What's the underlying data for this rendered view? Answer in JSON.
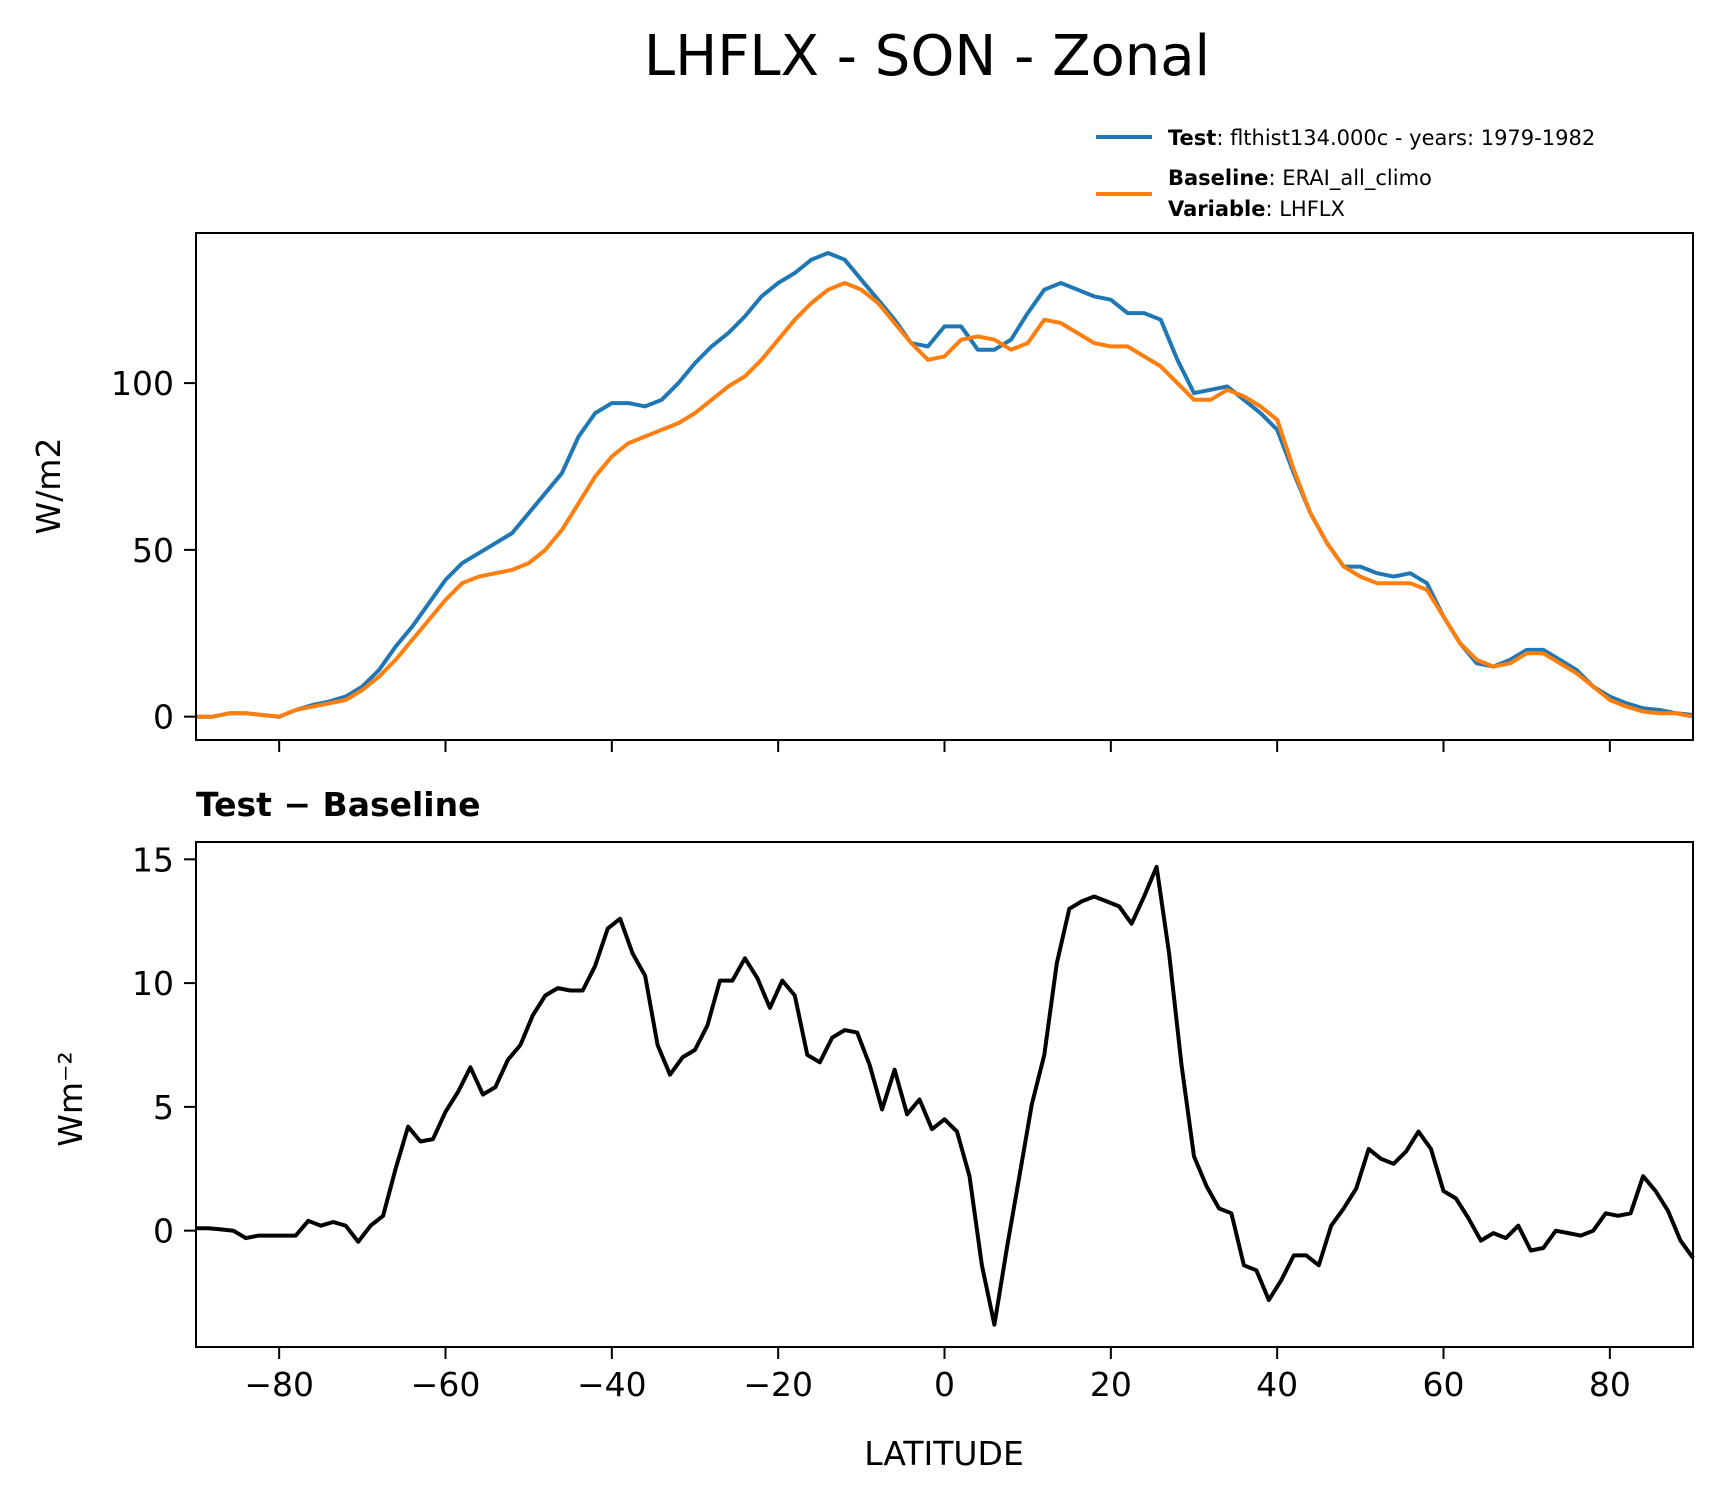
{
  "title": "LHFLX - SON - Zonal",
  "legend": {
    "test_key": "Test",
    "test_value": ": flthist134.000c - years: 1979-1982",
    "baseline_key": "Baseline",
    "baseline_value": ": ERAI_all_climo",
    "variable_key": "Variable",
    "variable_value": ": LHFLX"
  },
  "colors": {
    "test": "#1f77b4",
    "baseline": "#ff7f0e",
    "difference": "#000000"
  },
  "chart_data": [
    {
      "type": "line",
      "title": "",
      "xlabel": "",
      "ylabel": "W/m2",
      "xlim": [
        -90,
        90
      ],
      "ylim": [
        -7,
        145
      ],
      "xticks": [
        -80,
        -60,
        -40,
        -20,
        0,
        20,
        40,
        60,
        80
      ],
      "yticks": [
        0,
        50,
        100
      ],
      "ytick_labels": [
        "0",
        "50",
        "100"
      ],
      "grid": false,
      "legend_position": "above-right",
      "series": [
        {
          "name": "Test",
          "x": [
            -90,
            -88,
            -86,
            -84,
            -82,
            -80,
            -78,
            -76,
            -74,
            -72,
            -70,
            -68,
            -66,
            -64,
            -62,
            -60,
            -58,
            -56,
            -54,
            -52,
            -50,
            -48,
            -46,
            -44,
            -42,
            -40,
            -38,
            -36,
            -34,
            -32,
            -30,
            -28,
            -26,
            -24,
            -22,
            -20,
            -18,
            -16,
            -14,
            -12,
            -10,
            -8,
            -6,
            -4,
            -2,
            0,
            2,
            4,
            6,
            8,
            10,
            12,
            14,
            16,
            18,
            20,
            22,
            24,
            26,
            28,
            30,
            32,
            34,
            36,
            38,
            40,
            42,
            44,
            46,
            48,
            50,
            52,
            54,
            56,
            58,
            60,
            62,
            64,
            66,
            68,
            70,
            72,
            74,
            76,
            78,
            80,
            82,
            84,
            86,
            88,
            90
          ],
          "values": [
            0,
            0,
            1,
            1,
            0.5,
            0,
            2,
            3.5,
            4.5,
            6,
            9,
            14,
            21,
            27,
            34,
            41,
            46,
            49,
            52,
            55,
            61,
            67,
            73,
            84,
            91,
            94,
            94,
            93,
            95,
            100,
            106,
            111,
            115,
            120,
            126,
            130,
            133,
            137,
            139,
            137,
            131,
            125,
            119,
            112,
            111,
            117,
            117,
            110,
            110,
            113,
            121,
            128,
            130,
            128,
            126,
            125,
            121,
            121,
            119,
            107,
            97,
            98,
            99,
            95,
            91,
            86,
            73,
            61,
            52,
            45,
            45,
            43,
            42,
            43,
            40,
            30,
            22,
            16,
            15,
            17,
            20,
            20,
            17,
            14,
            9,
            6,
            4,
            2.5,
            2,
            1,
            0.5
          ]
        },
        {
          "name": "Baseline",
          "x": [
            -90,
            -88,
            -86,
            -84,
            -82,
            -80,
            -78,
            -76,
            -74,
            -72,
            -70,
            -68,
            -66,
            -64,
            -62,
            -60,
            -58,
            -56,
            -54,
            -52,
            -50,
            -48,
            -46,
            -44,
            -42,
            -40,
            -38,
            -36,
            -34,
            -32,
            -30,
            -28,
            -26,
            -24,
            -22,
            -20,
            -18,
            -16,
            -14,
            -12,
            -10,
            -8,
            -6,
            -4,
            -2,
            0,
            2,
            4,
            6,
            8,
            10,
            12,
            14,
            16,
            18,
            20,
            22,
            24,
            26,
            28,
            30,
            32,
            34,
            36,
            38,
            40,
            42,
            44,
            46,
            48,
            50,
            52,
            54,
            56,
            58,
            60,
            62,
            64,
            66,
            68,
            70,
            72,
            74,
            76,
            78,
            80,
            82,
            84,
            86,
            88,
            90
          ],
          "values": [
            0,
            0,
            1,
            1,
            0.5,
            0,
            2,
            3,
            4,
            5,
            8,
            12,
            17,
            23,
            29,
            35,
            40,
            42,
            43,
            44,
            46,
            50,
            56,
            64,
            72,
            78,
            82,
            84,
            86,
            88,
            91,
            95,
            99,
            102,
            107,
            113,
            119,
            124,
            128,
            130,
            128,
            124,
            118,
            112,
            107,
            108,
            113,
            114,
            113,
            110,
            112,
            119,
            118,
            115,
            112,
            111,
            111,
            108,
            105,
            100,
            95,
            95,
            98,
            96,
            93,
            89,
            74,
            61,
            52,
            45,
            42,
            40,
            40,
            40,
            38,
            30,
            22,
            17,
            15,
            16,
            19,
            19,
            16,
            13,
            9,
            5,
            3,
            1.5,
            1,
            1,
            0
          ]
        }
      ]
    },
    {
      "type": "line",
      "title": "Test − Baseline",
      "xlabel": "LATITUDE",
      "ylabel": "Wm⁻²",
      "xlim": [
        -90,
        90
      ],
      "ylim": [
        -4.7,
        15.7
      ],
      "xticks": [
        -80,
        -60,
        -40,
        -20,
        0,
        20,
        40,
        60,
        80
      ],
      "xtick_labels": [
        "−80",
        "−60",
        "−40",
        "−20",
        "0",
        "20",
        "40",
        "60",
        "80"
      ],
      "yticks": [
        0,
        5,
        10,
        15
      ],
      "ytick_labels": [
        "0",
        "5",
        "10",
        "15"
      ],
      "grid": false,
      "series": [
        {
          "name": "",
          "x": [
            -90,
            -88.5,
            -87,
            -85.5,
            -84,
            -82.5,
            -81,
            -79.5,
            -78,
            -76.5,
            -75,
            -73.5,
            -72,
            -70.5,
            -69,
            -67.5,
            -66,
            -64.5,
            -63,
            -61.5,
            -60,
            -58.5,
            -57,
            -55.5,
            -54,
            -52.5,
            -51,
            -49.5,
            -48,
            -46.5,
            -45,
            -43.5,
            -42,
            -40.5,
            -39,
            -37.5,
            -36,
            -34.5,
            -33,
            -31.5,
            -30,
            -28.5,
            -27,
            -25.5,
            -24,
            -22.5,
            -21,
            -19.5,
            -18,
            -16.5,
            -15,
            -13.5,
            -12,
            -10.5,
            -9,
            -7.5,
            -6,
            -4.5,
            -3,
            -1.5,
            0,
            1.5,
            3,
            4.5,
            6,
            7.5,
            9,
            10.5,
            12,
            13.5,
            15,
            16.5,
            18,
            19.5,
            21,
            22.5,
            24,
            25.5,
            27,
            28.5,
            30,
            31.5,
            33,
            34.5,
            36,
            37.5,
            39,
            40.5,
            42,
            43.5,
            45,
            46.5,
            48,
            49.5,
            51,
            52.5,
            54,
            55.5,
            57,
            58.5,
            60,
            61.5,
            63,
            64.5,
            66,
            67.5,
            69,
            70.5,
            72,
            73.5,
            75,
            76.5,
            78,
            79.5,
            81,
            82.5,
            84,
            85.5,
            87,
            88.5,
            90
          ],
          "values": [
            0.1,
            0.1,
            0.05,
            0,
            -0.3,
            -0.2,
            -0.2,
            -0.2,
            -0.2,
            0.4,
            0.2,
            0.35,
            0.2,
            -0.45,
            0.2,
            0.6,
            2.5,
            4.2,
            3.6,
            3.7,
            4.8,
            5.6,
            6.6,
            5.5,
            5.8,
            6.9,
            7.5,
            8.7,
            9.5,
            9.8,
            9.7,
            9.7,
            10.7,
            12.2,
            12.6,
            11.2,
            10.3,
            7.5,
            6.3,
            7.0,
            7.3,
            8.3,
            10.1,
            10.1,
            11.0,
            10.2,
            9.0,
            10.1,
            9.5,
            7.1,
            6.8,
            7.8,
            8.1,
            8.0,
            6.7,
            4.9,
            6.5,
            4.7,
            5.3,
            4.1,
            4.5,
            4.0,
            2.2,
            -1.4,
            -3.8,
            -0.7,
            2.2,
            5.1,
            7.1,
            10.8,
            13.0,
            13.3,
            13.5,
            13.3,
            13.1,
            12.4,
            13.5,
            14.7,
            11.2,
            6.7,
            3.0,
            1.8,
            0.9,
            0.7,
            -1.4,
            -1.6,
            -2.8,
            -2.0,
            -1.0,
            -1.0,
            -1.4,
            0.2,
            0.9,
            1.7,
            3.3,
            2.9,
            2.7,
            3.2,
            4.0,
            3.3,
            1.6,
            1.3,
            0.5,
            -0.4,
            -0.1,
            -0.3,
            0.2,
            -0.8,
            -0.7,
            0.0,
            -0.1,
            -0.2,
            0.0,
            0.7,
            0.6,
            0.7,
            2.2,
            1.6,
            0.8,
            -0.4,
            -1.1
          ]
        }
      ]
    }
  ]
}
